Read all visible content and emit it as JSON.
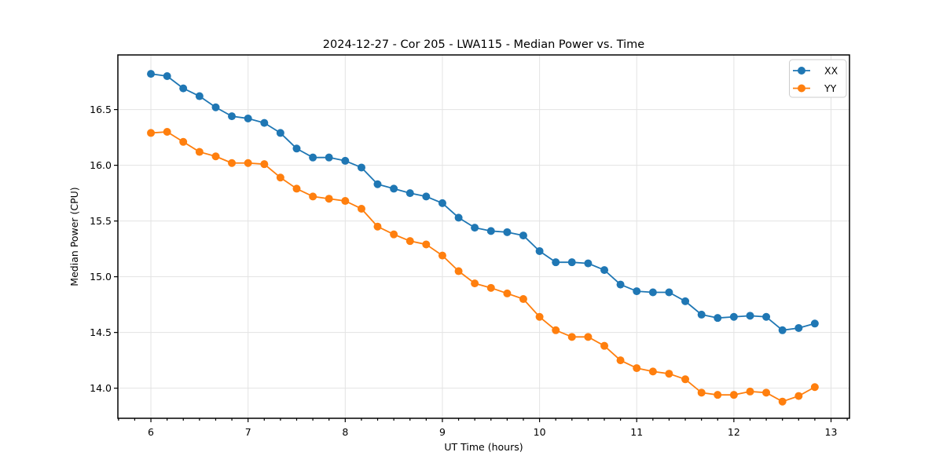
{
  "chart_data": {
    "type": "line",
    "title": "2024-12-27 - Cor 205 - LWA115 - Median Power vs. Time",
    "xlabel": "UT Time (hours)",
    "ylabel": "Median Power (CPU)",
    "xlim": [
      5.66,
      13.19
    ],
    "ylim": [
      13.73,
      16.99
    ],
    "grid": true,
    "grid_color": "#e3e3e3",
    "spine_color": "#000000",
    "background": "#ffffff",
    "x_ticks": [
      6,
      7,
      8,
      9,
      10,
      11,
      12,
      13
    ],
    "x_tick_labels": [
      "6",
      "7",
      "8",
      "9",
      "10",
      "11",
      "12",
      "13"
    ],
    "x_minor_ticks_per_unit": 6,
    "y_ticks": [
      14.0,
      14.5,
      15.0,
      15.5,
      16.0,
      16.5
    ],
    "y_tick_labels": [
      "14.0",
      "14.5",
      "15.0",
      "15.5",
      "16.0",
      "16.5"
    ],
    "legend": {
      "position": "upper right",
      "entries": [
        "XX",
        "YY"
      ]
    },
    "x": [
      6.0,
      6.167,
      6.333,
      6.5,
      6.667,
      6.833,
      7.0,
      7.167,
      7.333,
      7.5,
      7.667,
      7.833,
      8.0,
      8.167,
      8.333,
      8.5,
      8.667,
      8.833,
      9.0,
      9.167,
      9.333,
      9.5,
      9.667,
      9.833,
      10.0,
      10.167,
      10.333,
      10.5,
      10.667,
      10.833,
      11.0,
      11.167,
      11.333,
      11.5,
      11.667,
      11.833,
      12.0,
      12.167,
      12.333,
      12.5,
      12.667,
      12.833
    ],
    "series": [
      {
        "name": "XX",
        "color": "#1f77b4",
        "values": [
          16.82,
          16.8,
          16.69,
          16.62,
          16.52,
          16.44,
          16.42,
          16.38,
          16.29,
          16.15,
          16.07,
          16.07,
          16.04,
          15.98,
          15.83,
          15.79,
          15.75,
          15.72,
          15.66,
          15.53,
          15.44,
          15.41,
          15.4,
          15.37,
          15.23,
          15.13,
          15.13,
          15.12,
          15.06,
          14.93,
          14.87,
          14.86,
          14.86,
          14.78,
          14.66,
          14.63,
          14.64,
          14.65,
          14.64,
          14.52,
          14.54,
          14.58
        ]
      },
      {
        "name": "YY",
        "color": "#ff7f0e",
        "values": [
          16.29,
          16.3,
          16.21,
          16.12,
          16.08,
          16.02,
          16.02,
          16.01,
          15.89,
          15.79,
          15.72,
          15.7,
          15.68,
          15.61,
          15.45,
          15.38,
          15.32,
          15.29,
          15.19,
          15.05,
          14.94,
          14.9,
          14.85,
          14.8,
          14.64,
          14.52,
          14.46,
          14.46,
          14.38,
          14.25,
          14.18,
          14.15,
          14.13,
          14.08,
          13.96,
          13.94,
          13.94,
          13.97,
          13.96,
          13.88,
          13.93,
          14.01
        ]
      }
    ]
  }
}
